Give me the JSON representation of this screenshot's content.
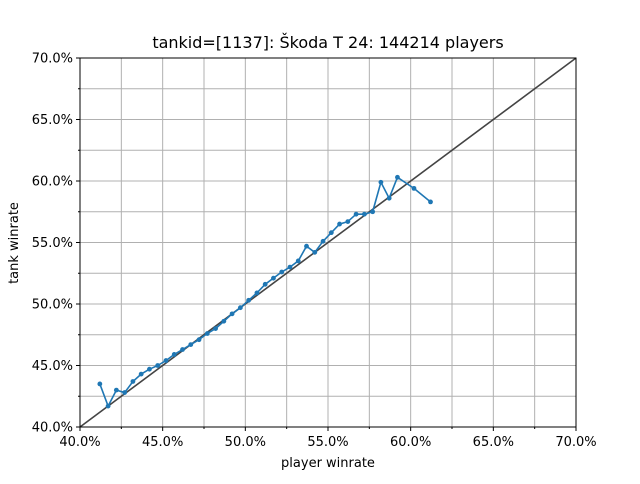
{
  "chart_data": {
    "type": "line",
    "title": "tankid=[1137]: Škoda T 24: 144214 players",
    "xlabel": "player winrate",
    "ylabel": "tank winrate",
    "xlim": [
      0.4,
      0.7
    ],
    "ylim": [
      0.4,
      0.7
    ],
    "x_ticks": [
      "40.0%",
      "45.0%",
      "50.0%",
      "55.0%",
      "60.0%",
      "65.0%",
      "70.0%"
    ],
    "y_ticks": [
      "40.0%",
      "45.0%",
      "50.0%",
      "55.0%",
      "60.0%",
      "65.0%",
      "70.0%"
    ],
    "grid": true,
    "reference_line": {
      "x": [
        0.4,
        0.7
      ],
      "y": [
        0.4,
        0.7
      ],
      "color": "#444444"
    },
    "series": [
      {
        "color": "#1f77b4",
        "x": [
          0.412,
          0.417,
          0.422,
          0.427,
          0.432,
          0.437,
          0.442,
          0.447,
          0.452,
          0.457,
          0.462,
          0.467,
          0.472,
          0.477,
          0.482,
          0.487,
          0.492,
          0.497,
          0.502,
          0.507,
          0.512,
          0.517,
          0.522,
          0.527,
          0.532,
          0.537,
          0.542,
          0.547,
          0.552,
          0.557,
          0.562,
          0.567,
          0.572,
          0.577,
          0.582,
          0.587,
          0.592,
          0.602,
          0.612
        ],
        "y": [
          0.435,
          0.417,
          0.43,
          0.428,
          0.437,
          0.443,
          0.447,
          0.45,
          0.454,
          0.459,
          0.463,
          0.467,
          0.471,
          0.476,
          0.48,
          0.486,
          0.492,
          0.497,
          0.503,
          0.509,
          0.516,
          0.521,
          0.526,
          0.53,
          0.535,
          0.547,
          0.542,
          0.551,
          0.558,
          0.565,
          0.567,
          0.573,
          0.573,
          0.575,
          0.599,
          0.586,
          0.603,
          0.594,
          0.583
        ]
      }
    ]
  }
}
